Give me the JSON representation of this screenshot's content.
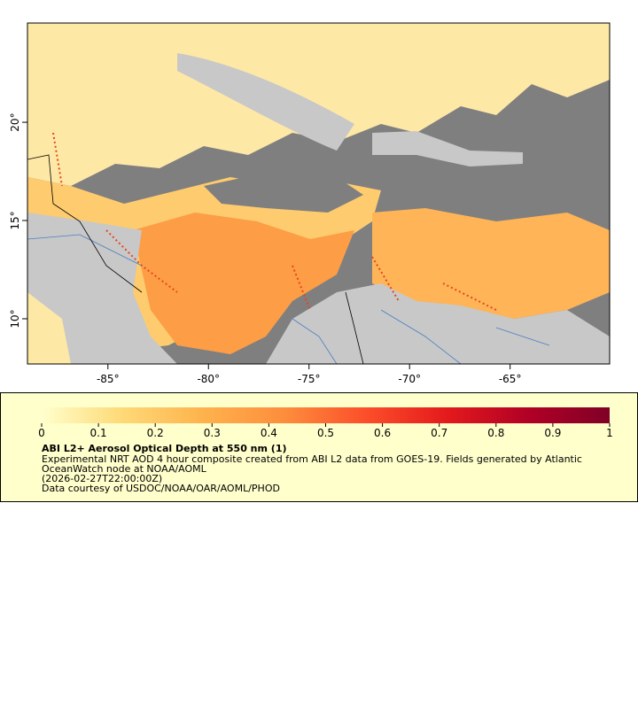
{
  "chart_data": {
    "type": "map",
    "xlim": [
      -89.0,
      -60.05
    ],
    "ylim": [
      7.7,
      25.05
    ],
    "xticks": [
      {
        "value": -85,
        "label": "-85°"
      },
      {
        "value": -80,
        "label": "-80°"
      },
      {
        "value": -75,
        "label": "-75°"
      },
      {
        "value": -70,
        "label": "-70°"
      },
      {
        "value": -65,
        "label": "-65°"
      }
    ],
    "yticks": [
      {
        "value": 10,
        "label": "10°"
      },
      {
        "value": 15,
        "label": "15°"
      },
      {
        "value": 20,
        "label": "20°"
      }
    ],
    "colorbar": {
      "range": [
        0,
        1
      ],
      "ticks": [
        0,
        0.1,
        0.2,
        0.3,
        0.4,
        0.5,
        0.6,
        0.7,
        0.8,
        0.9,
        1
      ],
      "colors": [
        "#ffffcc",
        "#fed976",
        "#feb24c",
        "#fd8d3c",
        "#fc4e2a",
        "#e31a1c",
        "#b10026",
        "#800026"
      ]
    },
    "legend": {
      "title": "ABI L2+ Aerosol Optical Depth at 550 nm (1)",
      "lines": [
        "Experimental NRT AOD 4 hour composite created from ABI L2 data from GOES-19. Fields generated by Atlantic",
        "OceanWatch node at NOAA/AOML",
        "(2026-02-27T22:00:00Z)",
        "Data courtesy of USDOC/NOAA/OAR/AOML/PHOD"
      ]
    }
  }
}
